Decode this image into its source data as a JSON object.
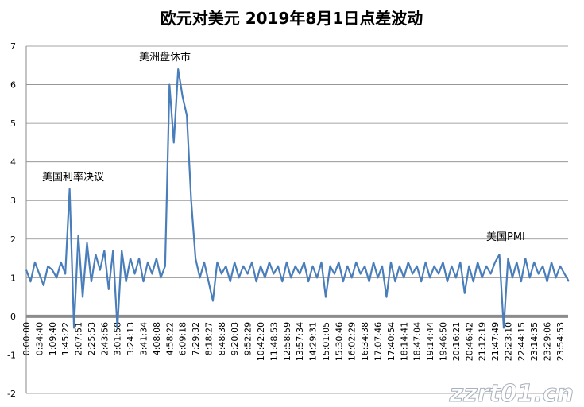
{
  "chart_data": {
    "type": "line",
    "title": "欧元对美元 2019年8月1日点差波动",
    "color": "#4a7ebb",
    "grid": true,
    "ylim": [
      -2,
      7
    ],
    "yticks": [
      -2,
      -1,
      0,
      1,
      2,
      3,
      4,
      5,
      6,
      7
    ],
    "annotations": [
      "美国利率决议",
      "美洲盘休市",
      "美国PMI"
    ],
    "watermark": "zzrt01.cn",
    "categories": [
      "0:00:00",
      null,
      null,
      "0:34:40",
      null,
      null,
      "1:09:40",
      null,
      null,
      "1:45:22",
      null,
      null,
      "2:07:51",
      null,
      null,
      "2:25:53",
      null,
      null,
      "2:43:56",
      null,
      null,
      "3:01:58",
      null,
      null,
      "3:24:13",
      null,
      null,
      "3:41:34",
      null,
      null,
      "4:08:08",
      null,
      null,
      "4:58:22",
      null,
      null,
      "6:09:18",
      null,
      null,
      "7:29:32",
      null,
      null,
      "8:18:27",
      null,
      null,
      "8:48:38",
      null,
      null,
      "9:20:03",
      null,
      null,
      "9:52:29",
      null,
      null,
      "10:42:20",
      null,
      null,
      "11:48:53",
      null,
      null,
      "12:58:59",
      null,
      null,
      "13:57:34",
      null,
      null,
      "14:29:31",
      null,
      null,
      "15:01:05",
      null,
      null,
      "15:30:46",
      null,
      null,
      "16:02:29",
      null,
      null,
      "16:34:38",
      null,
      null,
      "17:07:46",
      null,
      null,
      "17:40:54",
      null,
      null,
      "18:14:41",
      null,
      null,
      "18:47:04",
      null,
      null,
      "19:14:44",
      null,
      null,
      "19:46:50",
      null,
      null,
      "20:16:21",
      null,
      null,
      "20:46:42",
      null,
      null,
      "21:12:19",
      null,
      null,
      "21:47:49",
      null,
      null,
      "22:23:10",
      null,
      null,
      "22:44:15",
      null,
      null,
      "23:14:35",
      null,
      null,
      "23:29:06",
      null,
      null,
      "23:54:53",
      null,
      null
    ],
    "values": [
      1.2,
      0.9,
      1.4,
      1.1,
      0.8,
      1.3,
      1.2,
      1.0,
      1.4,
      1.1,
      3.3,
      -0.3,
      2.1,
      0.5,
      1.9,
      0.9,
      1.6,
      1.2,
      1.7,
      0.7,
      1.7,
      -0.3,
      1.7,
      0.9,
      1.5,
      1.1,
      1.5,
      0.9,
      1.4,
      1.1,
      1.5,
      1.0,
      1.3,
      6.0,
      4.5,
      6.4,
      5.7,
      5.2,
      3.0,
      1.5,
      1.0,
      1.4,
      0.9,
      0.4,
      1.4,
      1.1,
      1.3,
      0.9,
      1.4,
      1.0,
      1.3,
      1.1,
      1.4,
      0.9,
      1.3,
      1.0,
      1.4,
      1.1,
      1.3,
      0.9,
      1.4,
      1.0,
      1.3,
      1.1,
      1.4,
      0.9,
      1.3,
      1.0,
      1.4,
      0.5,
      1.3,
      1.1,
      1.4,
      0.9,
      1.3,
      1.0,
      1.4,
      1.1,
      1.3,
      0.9,
      1.4,
      1.0,
      1.3,
      0.5,
      1.4,
      0.9,
      1.3,
      1.0,
      1.4,
      1.1,
      1.3,
      0.9,
      1.4,
      1.0,
      1.3,
      1.1,
      1.4,
      0.9,
      1.3,
      1.0,
      1.4,
      0.6,
      1.3,
      0.9,
      1.4,
      1.0,
      1.3,
      1.1,
      1.4,
      1.6,
      -0.3,
      1.5,
      1.0,
      1.4,
      0.9,
      1.5,
      1.0,
      1.4,
      1.1,
      1.3,
      0.9,
      1.4,
      1.0,
      1.3,
      1.1,
      0.9
    ]
  }
}
